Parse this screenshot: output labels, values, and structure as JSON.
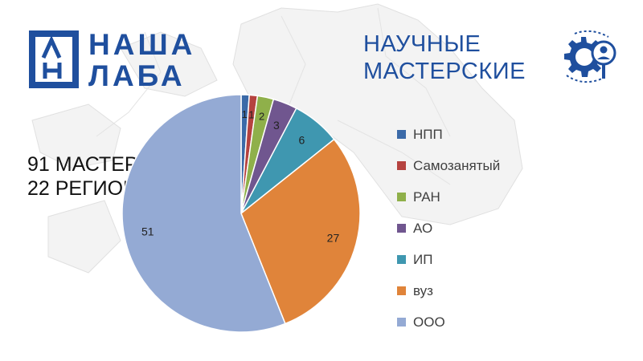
{
  "logo": {
    "monogram": "ЛН",
    "line1": "НАША",
    "line2": "ЛАБА",
    "color": "#1f4f9e"
  },
  "brand": {
    "line1": "НАУЧНЫЕ",
    "line2": "МАСТЕРСКИЕ",
    "icon": "gear-person-icon",
    "color": "#1f4f9e"
  },
  "headline": {
    "line1": "91 МАСТЕРСКАЯ",
    "line2": "22 РЕГИОНА"
  },
  "chart_data": {
    "type": "pie",
    "title": "",
    "categories": [
      "НПП",
      "Самозанятый",
      "РАН",
      "АО",
      "ИП",
      "вуз",
      "ООО"
    ],
    "values": [
      1,
      1,
      2,
      3,
      6,
      27,
      51
    ],
    "colors": [
      "#3b6aa8",
      "#b5423f",
      "#8fb04a",
      "#70568f",
      "#3f97b0",
      "#e0843a",
      "#94aad4"
    ],
    "data_labels": [
      "1",
      "1",
      "2",
      "3",
      "6",
      "27",
      "51"
    ],
    "legend_position": "right",
    "start_angle_deg": 0,
    "direction": "clockwise"
  }
}
